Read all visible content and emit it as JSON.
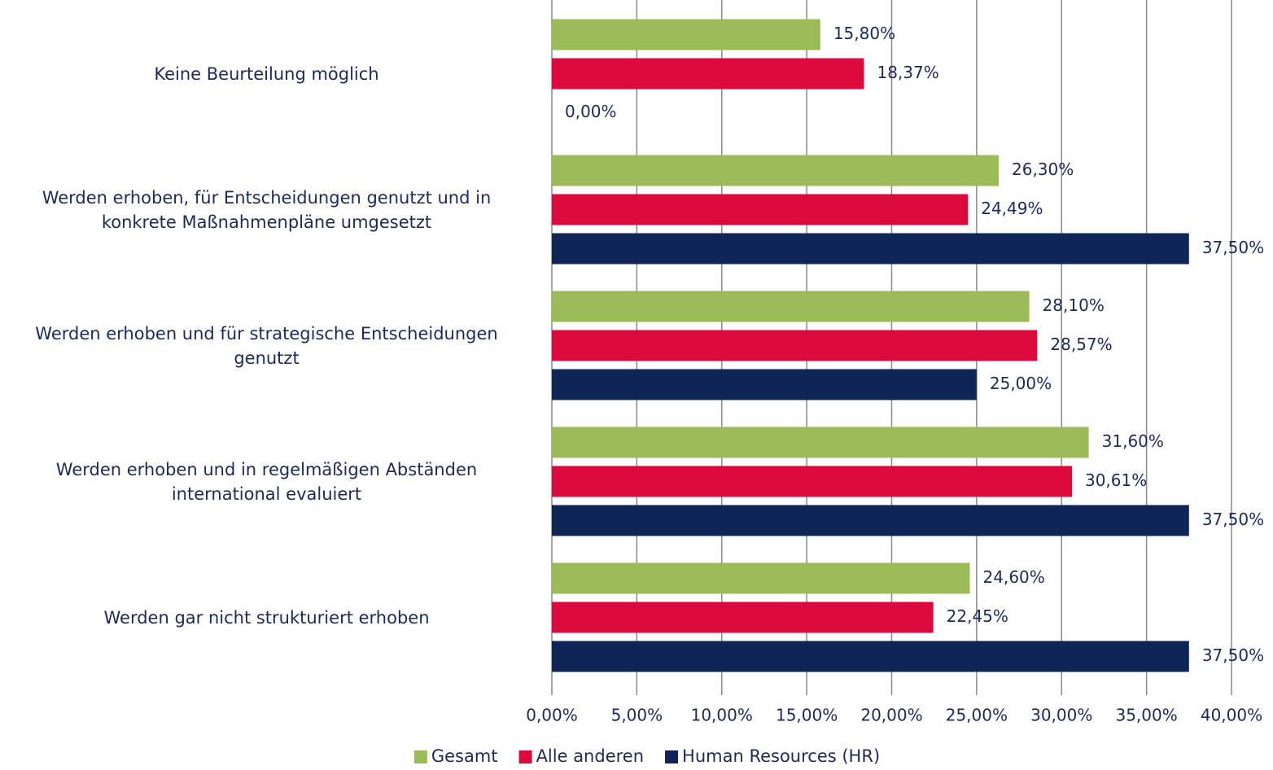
{
  "chart_data": {
    "type": "barh",
    "categories": [
      "Keine Beurteilung möglich",
      "Werden erhoben, für Entscheidungen genutzt und in\nkonkrete Maßnahmenpläne umgesetzt",
      "Werden erhoben und für strategische Entscheidungen\ngenutzt",
      "Werden erhoben und in regelmäßigen Abständen\ninternational evaluiert",
      "Werden gar nicht strukturiert erhoben"
    ],
    "series": [
      {
        "name": "Gesamt",
        "color": "#9bbb59",
        "values": [
          15.8,
          26.3,
          28.1,
          31.6,
          24.6
        ],
        "value_labels": [
          "15,80%",
          "26,30%",
          "28,10%",
          "31,60%",
          "24,60%"
        ]
      },
      {
        "name": "Alle anderen",
        "color": "#dc0a3c",
        "values": [
          18.37,
          24.49,
          28.57,
          30.61,
          22.45
        ],
        "value_labels": [
          "18,37%",
          "24,49%",
          "28,57%",
          "30,61%",
          "22,45%"
        ]
      },
      {
        "name": "Human Resources (HR)",
        "color": "#0f2557",
        "values": [
          0,
          37.5,
          25,
          37.5,
          37.5
        ],
        "value_labels": [
          "0,00%",
          "37,50%",
          "25,00%",
          "37,50%",
          "37,50%"
        ]
      }
    ],
    "xlim": [
      0,
      40
    ],
    "xticks": [
      {
        "value": 0,
        "label": "0,00%"
      },
      {
        "value": 5,
        "label": "5,00%"
      },
      {
        "value": 10,
        "label": "10,00%"
      },
      {
        "value": 15,
        "label": "15,00%"
      },
      {
        "value": 20,
        "label": "20,00%"
      },
      {
        "value": 25,
        "label": "25,00%"
      },
      {
        "value": 30,
        "label": "30,00%"
      },
      {
        "value": 35,
        "label": "35,00%"
      },
      {
        "value": 40,
        "label": "40,00%"
      }
    ],
    "grid": true,
    "legend": "bottom"
  }
}
